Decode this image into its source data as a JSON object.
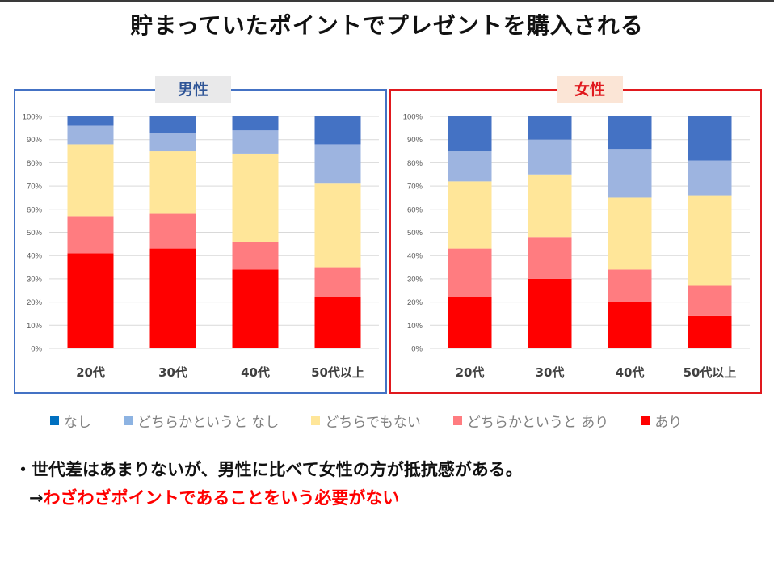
{
  "title": "貯まっていたポイントでプレゼントを購入される",
  "panels": {
    "male": {
      "label": "男性"
    },
    "female": {
      "label": "女性"
    }
  },
  "colors": {
    "male_border": "#4472C4",
    "female_border": "#E0191E",
    "nashi": "#4472C4",
    "dochiraka_nashi": "#9DB4E0",
    "dochira_demo": "#FFE699",
    "dochiraka_ari": "#FF7C80",
    "ari": "#FF0000"
  },
  "legend": [
    {
      "label": "なし",
      "color": "#0070C0"
    },
    {
      "label": "どちらかというと なし",
      "color": "#8DB3E2"
    },
    {
      "label": "どちらでもない",
      "color": "#FFE699"
    },
    {
      "label": "どちらかというと あり",
      "color": "#FF7C80"
    },
    {
      "label": "あり",
      "color": "#FF0000"
    }
  ],
  "chart_data": [
    {
      "type": "bar",
      "stacked": true,
      "percent": true,
      "panel": "男性",
      "categories": [
        "20代",
        "30代",
        "40代",
        "50代以上"
      ],
      "y_ticks": [
        "0%",
        "10%",
        "20%",
        "30%",
        "40%",
        "50%",
        "60%",
        "70%",
        "80%",
        "90%",
        "100%"
      ],
      "ylim": [
        0,
        100
      ],
      "grid": true,
      "series": [
        {
          "name": "あり",
          "values": [
            41,
            43,
            34,
            22
          ]
        },
        {
          "name": "どちらかというと あり",
          "values": [
            16,
            15,
            12,
            13
          ]
        },
        {
          "name": "どちらでもない",
          "values": [
            31,
            27,
            38,
            36
          ]
        },
        {
          "name": "どちらかというと なし",
          "values": [
            8,
            8,
            10,
            17
          ]
        },
        {
          "name": "なし",
          "values": [
            4,
            7,
            6,
            12
          ]
        }
      ]
    },
    {
      "type": "bar",
      "stacked": true,
      "percent": true,
      "panel": "女性",
      "categories": [
        "20代",
        "30代",
        "40代",
        "50代以上"
      ],
      "y_ticks": [
        "0%",
        "10%",
        "20%",
        "30%",
        "40%",
        "50%",
        "60%",
        "70%",
        "80%",
        "90%",
        "100%"
      ],
      "ylim": [
        0,
        100
      ],
      "grid": true,
      "series": [
        {
          "name": "あり",
          "values": [
            22,
            30,
            20,
            14
          ]
        },
        {
          "name": "どちらかというと あり",
          "values": [
            21,
            18,
            14,
            13
          ]
        },
        {
          "name": "どちらでもない",
          "values": [
            29,
            27,
            31,
            39
          ]
        },
        {
          "name": "どちらかというと なし",
          "values": [
            13,
            15,
            21,
            15
          ]
        },
        {
          "name": "なし",
          "values": [
            15,
            10,
            14,
            19
          ]
        }
      ]
    }
  ],
  "notes": {
    "line1": "・世代差はあまりないが、男性に比べて女性の方が抵抗感がある。",
    "line2_arrow": "→",
    "line2_red": "わざわざポイントであることをいう必要がない"
  }
}
